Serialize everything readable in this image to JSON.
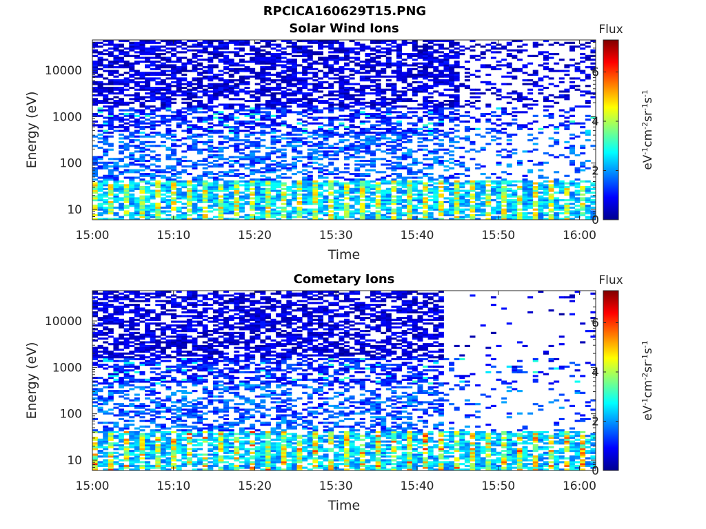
{
  "figure_title": "RPCICA160629T15.PNG",
  "chart_data": [
    {
      "type": "heatmap",
      "title": "Solar Wind Ions",
      "xlabel": "Time",
      "ylabel": "Energy (eV)",
      "x_ticks": [
        "15:00",
        "15:10",
        "15:20",
        "15:30",
        "15:40",
        "15:50",
        "16:00"
      ],
      "xlim": [
        "15:00",
        "16:02"
      ],
      "y_scale": "log",
      "y_ticks": [
        10,
        100,
        1000,
        10000
      ],
      "y_tick_labels": [
        "10",
        "100",
        "1000",
        "10000"
      ],
      "ylim": [
        6,
        45000
      ],
      "colorbar": {
        "label": "Flux",
        "units": "eV-1cm-2sr-1s-1",
        "ticks": [
          0,
          2,
          4,
          6
        ],
        "tick_labels": [
          "0",
          "2",
          "4",
          "6"
        ],
        "range": [
          0,
          7.3
        ],
        "colormap": "jet"
      },
      "grid": false,
      "data_pattern": {
        "n_time_bins": 96,
        "n_energy_bins": 96,
        "high_energy_flux": [
          0.3,
          1.0
        ],
        "mid_energy_flux": [
          1.0,
          2.0
        ],
        "low_energy_flux_peak": [
          3.0,
          5.0
        ],
        "sparse_after": "15:45"
      }
    },
    {
      "type": "heatmap",
      "title": "Cometary Ions",
      "xlabel": "Time",
      "ylabel": "Energy (eV)",
      "x_ticks": [
        "15:00",
        "15:10",
        "15:20",
        "15:30",
        "15:40",
        "15:50",
        "16:00"
      ],
      "xlim": [
        "15:00",
        "16:02"
      ],
      "y_scale": "log",
      "y_ticks": [
        10,
        100,
        1000,
        10000
      ],
      "y_tick_labels": [
        "10",
        "100",
        "1000",
        "10000"
      ],
      "ylim": [
        6,
        45000
      ],
      "colorbar": {
        "label": "Flux",
        "units": "eV-1cm-2sr-1s-1",
        "ticks": [
          0,
          2,
          4,
          6
        ],
        "tick_labels": [
          "0",
          "2",
          "4",
          "6"
        ],
        "range": [
          0,
          7.3
        ],
        "colormap": "jet"
      },
      "grid": false,
      "data_pattern": {
        "n_time_bins": 96,
        "n_energy_bins": 96,
        "high_energy_flux": [
          0.3,
          1.0
        ],
        "mid_energy_flux": [
          1.0,
          2.0
        ],
        "low_energy_flux_peak": [
          3.0,
          6.0
        ],
        "high_energy_cutoff_after": "15:43"
      }
    }
  ]
}
